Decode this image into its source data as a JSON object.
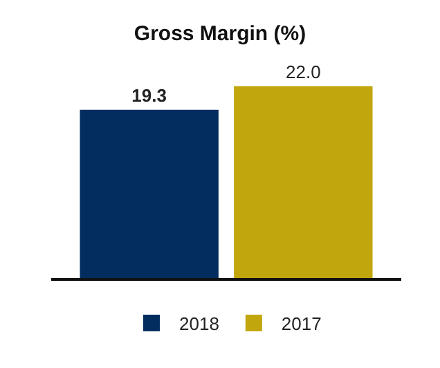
{
  "chart_data": {
    "type": "bar",
    "title": "Gross Margin (%)",
    "categories": [
      null
    ],
    "series": [
      {
        "name": "2018",
        "color": "#022d5e",
        "values": [
          19.3
        ],
        "value_labels": [
          "19.3"
        ]
      },
      {
        "name": "2017",
        "color": "#c2a60e",
        "values": [
          22.0
        ],
        "value_labels": [
          "22.0"
        ]
      }
    ],
    "legend": "bottom",
    "tick_labels": false
  }
}
